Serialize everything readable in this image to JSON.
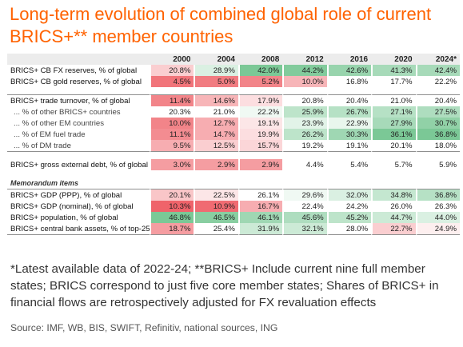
{
  "title": "Long-term evolution of combined global role of current BRICS+** member countries",
  "note": "*Latest available data of 2022-24; **BRICS+ Include current nine full member states; BRICS correspond to just five core member states; Shares of BRICS+ in financial flows are retrospectively adjusted for FX revaluation effects",
  "source": "Source: IMF, WB, BIS, SWIFT, Refinitiv, national sources, ING",
  "colors": {
    "title": "#ff6200",
    "green_strong": "#6cc28a",
    "green_light": "#d5eedb",
    "red_strong": "#ee5b62",
    "red_light": "#f9d2d4",
    "header_bg": "#ececec"
  },
  "chart_data": {
    "type": "table",
    "columns": [
      "2000",
      "2004",
      "2008",
      "2012",
      "2016",
      "2020",
      "2024*"
    ],
    "rows": [
      {
        "label": "BRICS+ CB FX reserves, % of global",
        "values": [
          "20.8%",
          "28.9%",
          "42.0%",
          "44.2%",
          "42.6%",
          "41.3%",
          "42.4%"
        ],
        "shade": [
          -0.3,
          0.25,
          0.9,
          0.85,
          0.7,
          0.6,
          0.6
        ]
      },
      {
        "label": "BRICS+ CB gold reserves, % of global",
        "values": [
          "4.5%",
          "5.0%",
          "5.2%",
          "10.0%",
          "16.8%",
          "17.7%",
          "22.2%"
        ],
        "shade": [
          -0.85,
          -0.8,
          -0.75,
          -0.45,
          0,
          0,
          0
        ]
      },
      {
        "spacer": true
      },
      {
        "label": "BRICS+ trade turnover, % of global",
        "values": [
          "11.4%",
          "14.6%",
          "17.9%",
          "20.8%",
          "20.4%",
          "21.0%",
          "20.4%"
        ],
        "shade": [
          -0.75,
          -0.45,
          -0.2,
          0,
          0,
          0,
          0
        ],
        "sep": true
      },
      {
        "label": "... % of other BRICS+ countries",
        "values": [
          "20.3%",
          "21.0%",
          "22.2%",
          "25.9%",
          "26.7%",
          "27.1%",
          "27.5%"
        ],
        "shade": [
          0,
          0,
          0.1,
          0.45,
          0.5,
          0.5,
          0.55
        ],
        "sub": true
      },
      {
        "label": "... % of other EM countries",
        "values": [
          "10.0%",
          "12.7%",
          "19.1%",
          "23.9%",
          "22.9%",
          "27.9%",
          "30.7%"
        ],
        "shade": [
          -0.75,
          -0.5,
          -0.15,
          0.2,
          0.15,
          0.6,
          0.75
        ],
        "sub": true
      },
      {
        "label": "... % of EM fuel trade",
        "values": [
          "11.1%",
          "14.7%",
          "19.9%",
          "26.2%",
          "30.3%",
          "36.1%",
          "36.8%"
        ],
        "shade": [
          -0.7,
          -0.5,
          -0.2,
          0.45,
          0.65,
          0.9,
          0.9
        ],
        "sub": true
      },
      {
        "label": "... % of DM trade",
        "values": [
          "9.5%",
          "12.5%",
          "15.7%",
          "19.2%",
          "19.1%",
          "20.1%",
          "18.0%"
        ],
        "shade": [
          -0.5,
          -0.3,
          -0.25,
          0,
          0,
          0,
          0
        ],
        "sub": true,
        "last": true
      },
      {
        "spacer": true
      },
      {
        "label": "BRICS+ gross external debt, % of global",
        "values": [
          "3.0%",
          "2.9%",
          "2.9%",
          "4.4%",
          "5.4%",
          "5.7%",
          "5.9%"
        ],
        "shade": [
          -0.6,
          -0.6,
          -0.6,
          0,
          0,
          0,
          0
        ]
      },
      {
        "spacer": true
      },
      {
        "label": "Memorandum items",
        "memo": true
      },
      {
        "label": "BRICS+ GDP (PPP), % of global",
        "values": [
          "20.1%",
          "22.5%",
          "26.1%",
          "29.6%",
          "32.0%",
          "34.8%",
          "36.8%"
        ],
        "shade": [
          -0.35,
          -0.15,
          0,
          0.1,
          0.25,
          0.4,
          0.5
        ],
        "sep": true
      },
      {
        "label": "BRICS+ GDP (nominal), % of global",
        "values": [
          "10.3%",
          "10.9%",
          "16.7%",
          "22.4%",
          "24.2%",
          "26.0%",
          "26.3%"
        ],
        "shade": [
          -0.95,
          -0.9,
          -0.5,
          0,
          0,
          0,
          0
        ]
      },
      {
        "label": "BRICS+ population, % of global",
        "values": [
          "46.8%",
          "46.5%",
          "46.1%",
          "45.6%",
          "45.2%",
          "44.7%",
          "44.0%"
        ],
        "shade": [
          0.9,
          0.8,
          0.65,
          0.55,
          0.45,
          0.35,
          0.25
        ]
      },
      {
        "label": "BRICS+ central bank assets, % of top-25",
        "values": [
          "18.7%",
          "25.4%",
          "31.9%",
          "32.1%",
          "28.0%",
          "22.7%",
          "24.9%"
        ],
        "shade": [
          -0.6,
          0,
          0.35,
          0.35,
          0,
          -0.3,
          -0.1
        ],
        "last": true
      }
    ]
  }
}
